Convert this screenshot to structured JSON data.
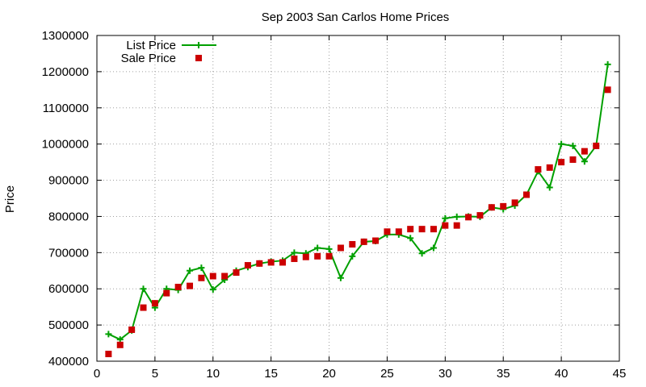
{
  "chart_data": {
    "type": "line",
    "title": "Sep 2003 San Carlos Home Prices",
    "xlabel": "",
    "ylabel": "Price",
    "xlim": [
      0,
      45
    ],
    "ylim": [
      400000,
      1300000
    ],
    "xticks": [
      0,
      5,
      10,
      15,
      20,
      25,
      30,
      35,
      40,
      45
    ],
    "yticks": [
      400000,
      500000,
      600000,
      700000,
      800000,
      900000,
      1000000,
      1100000,
      1200000,
      1300000
    ],
    "grid": true,
    "legend_position": "top-left",
    "series": [
      {
        "name": "List Price",
        "style": "lines+points",
        "marker": "plus",
        "color": "#00a000",
        "x": [
          1,
          2,
          3,
          4,
          5,
          6,
          7,
          8,
          9,
          10,
          11,
          12,
          13,
          14,
          15,
          16,
          17,
          18,
          19,
          20,
          21,
          22,
          23,
          24,
          25,
          26,
          27,
          28,
          29,
          30,
          31,
          32,
          33,
          34,
          35,
          36,
          37,
          38,
          39,
          40,
          41,
          42,
          43,
          44
        ],
        "y": [
          475000,
          460000,
          485000,
          600000,
          548000,
          600000,
          597000,
          650000,
          658000,
          598000,
          625000,
          650000,
          660000,
          670000,
          675000,
          678000,
          700000,
          698000,
          713000,
          710000,
          630000,
          690000,
          730000,
          732000,
          750000,
          750000,
          740000,
          698000,
          713000,
          795000,
          799000,
          800000,
          799000,
          825000,
          820000,
          830000,
          860000,
          925000,
          880000,
          1000000,
          995000,
          952000,
          995000,
          1220000
        ]
      },
      {
        "name": "Sale Price",
        "style": "points",
        "marker": "square",
        "color": "#cc0000",
        "x": [
          1,
          2,
          3,
          4,
          5,
          6,
          7,
          8,
          9,
          10,
          11,
          12,
          13,
          14,
          15,
          16,
          17,
          18,
          19,
          20,
          21,
          22,
          23,
          24,
          25,
          26,
          27,
          28,
          29,
          30,
          31,
          32,
          33,
          34,
          35,
          36,
          37,
          38,
          39,
          40,
          41,
          42,
          43,
          44
        ],
        "y": [
          420000,
          445000,
          487000,
          548000,
          560000,
          588000,
          605000,
          608000,
          630000,
          635000,
          635000,
          645000,
          665000,
          670000,
          673000,
          673000,
          683000,
          688000,
          690000,
          690000,
          713000,
          723000,
          730000,
          733000,
          758000,
          758000,
          765000,
          765000,
          765000,
          775000,
          775000,
          798000,
          803000,
          825000,
          828000,
          838000,
          860000,
          930000,
          935000,
          950000,
          957000,
          980000,
          995000,
          1150000
        ]
      }
    ]
  }
}
